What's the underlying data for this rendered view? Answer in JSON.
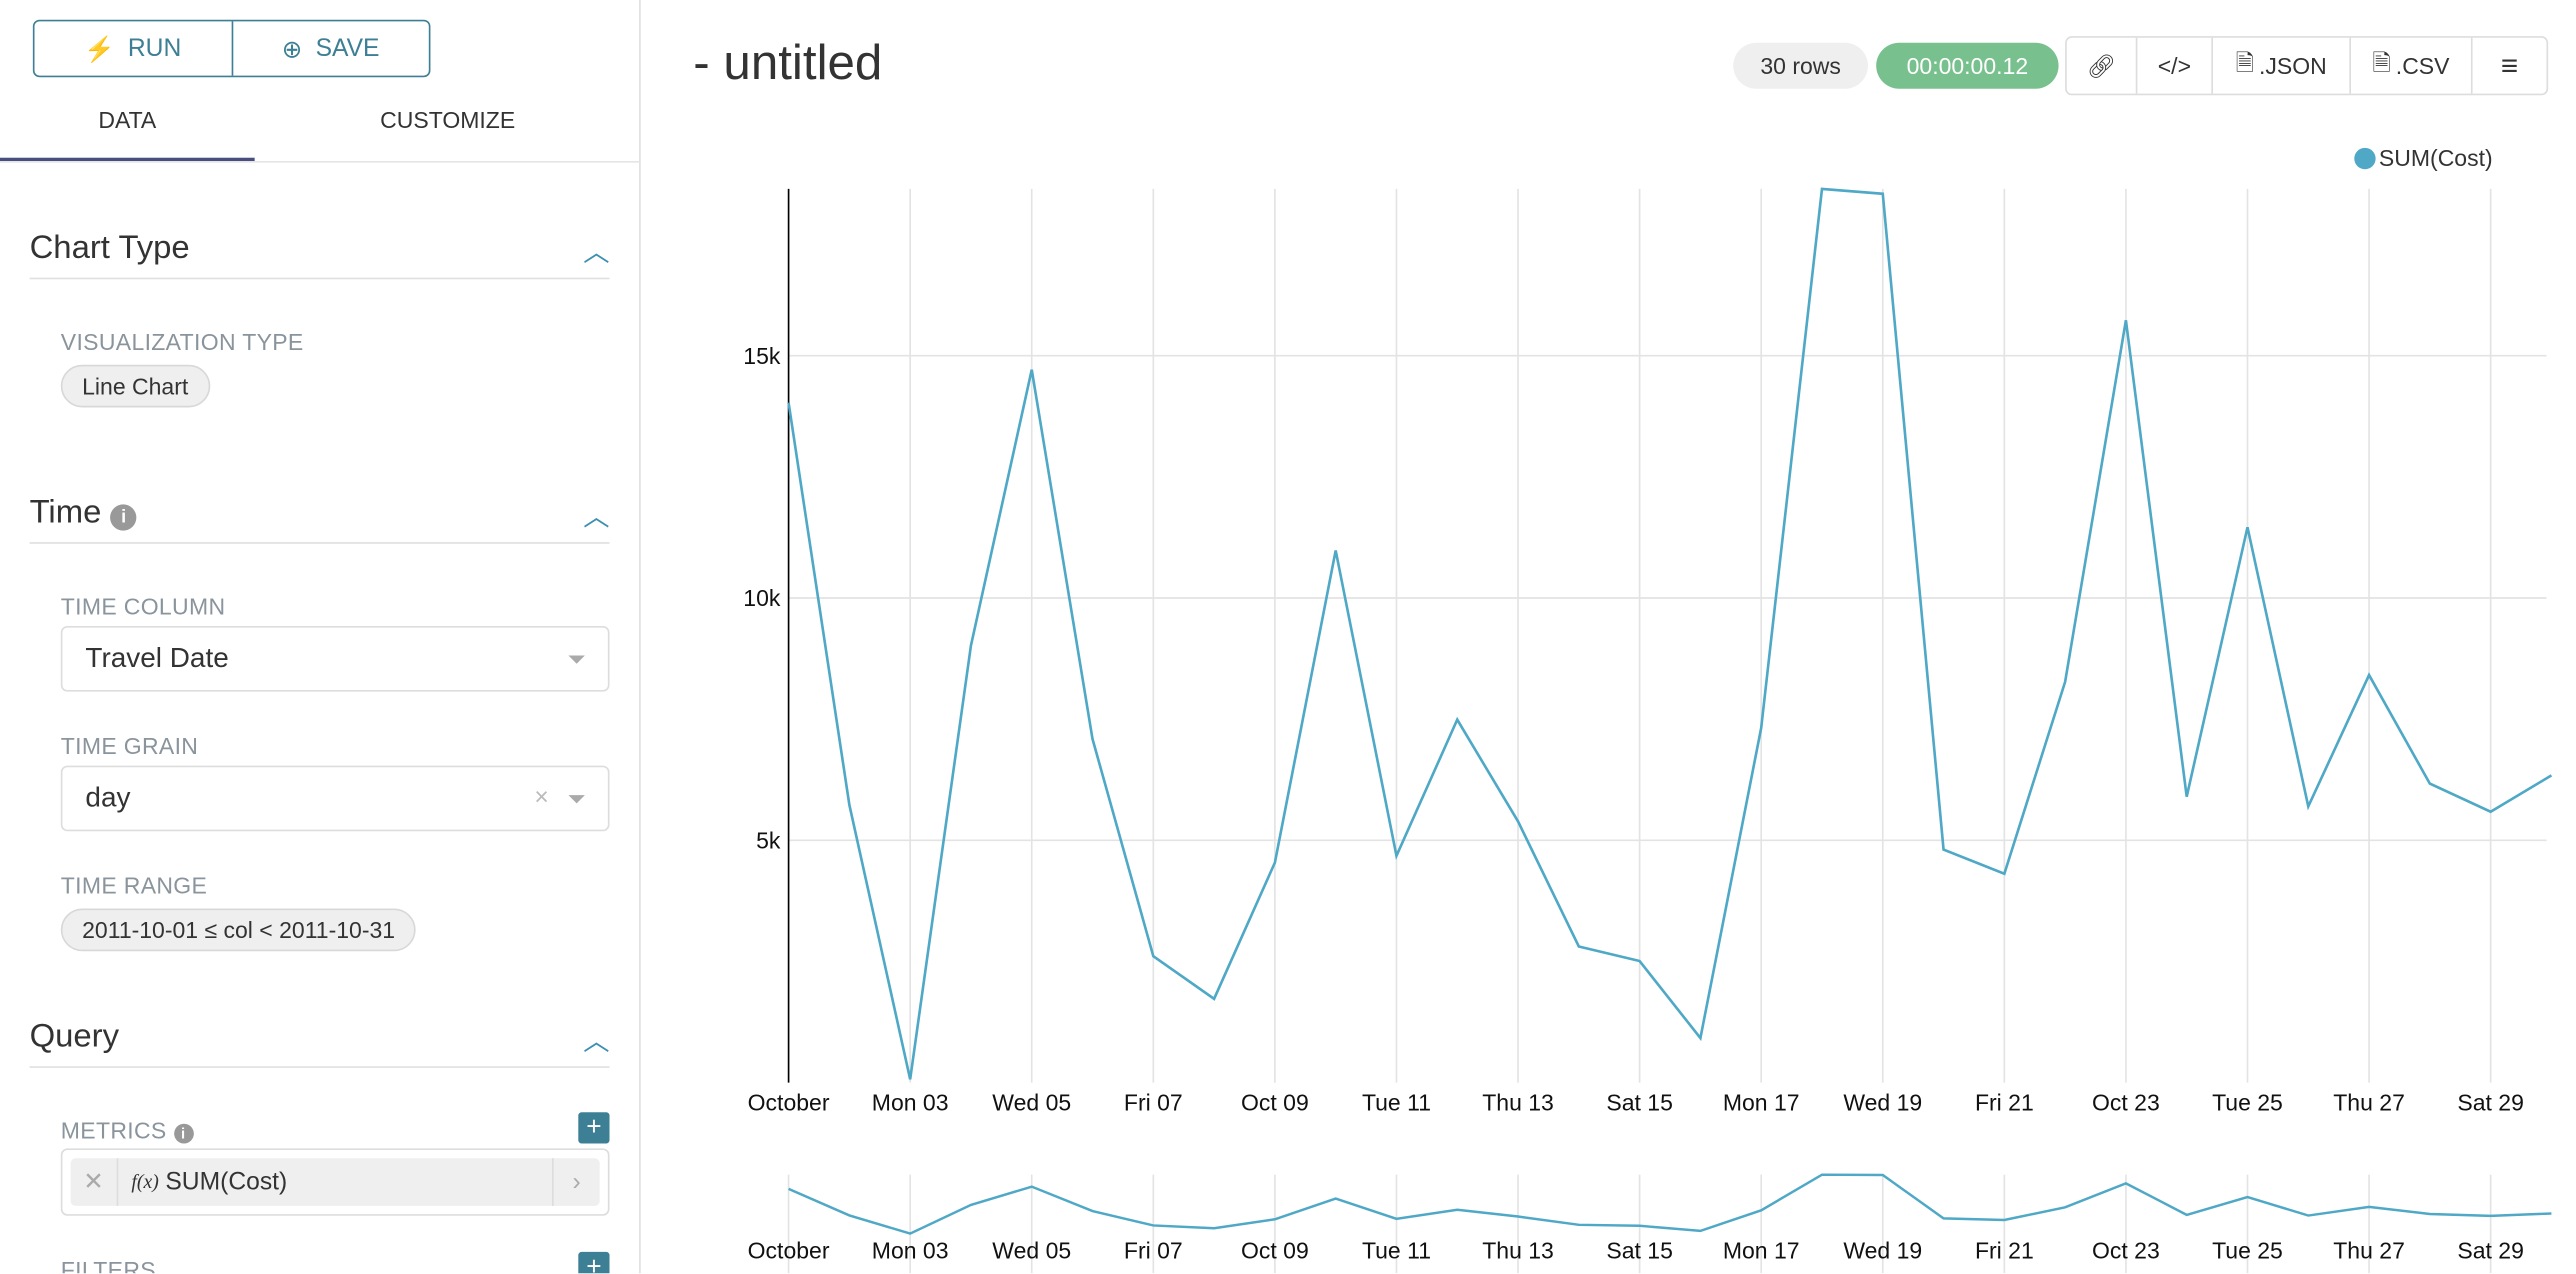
{
  "toolbar": {
    "run_label": "RUN",
    "save_label": "SAVE"
  },
  "tabs": [
    {
      "label": "DATA",
      "active": true
    },
    {
      "label": "CUSTOMIZE",
      "active": false
    }
  ],
  "sections": {
    "chart_type": {
      "title": "Chart Type",
      "viz_label": "VISUALIZATION TYPE",
      "viz_value": "Line Chart"
    },
    "time": {
      "title": "Time",
      "column_label": "TIME COLUMN",
      "column_value": "Travel Date",
      "grain_label": "TIME GRAIN",
      "grain_value": "day",
      "range_label": "TIME RANGE",
      "range_value": "2011-10-01 ≤ col < 2011-10-31"
    },
    "query": {
      "title": "Query",
      "metrics_label": "METRICS",
      "metric_value": "SUM(Cost)",
      "metric_fx": "f(x)",
      "filters_label": "FILTERS"
    }
  },
  "header": {
    "title": "- untitled",
    "rows_badge": "30 rows",
    "timer_badge": "00:00:00.12",
    "json_label": ".JSON",
    "csv_label": ".CSV"
  },
  "colors": {
    "accent": "#3d8096",
    "line": "#4ea8c6",
    "success": "#78c08e"
  },
  "chart_data": {
    "type": "line",
    "x": [
      "2011-10-01",
      "2011-10-02",
      "2011-10-03",
      "2011-10-04",
      "2011-10-05",
      "2011-10-06",
      "2011-10-07",
      "2011-10-08",
      "2011-10-09",
      "2011-10-10",
      "2011-10-11",
      "2011-10-12",
      "2011-10-13",
      "2011-10-14",
      "2011-10-15",
      "2011-10-16",
      "2011-10-17",
      "2011-10-18",
      "2011-10-19",
      "2011-10-20",
      "2011-10-21",
      "2011-10-22",
      "2011-10-23",
      "2011-10-24",
      "2011-10-25",
      "2011-10-26",
      "2011-10-27",
      "2011-10-28",
      "2011-10-29",
      "2011-10-30"
    ],
    "series": [
      {
        "name": "SUM(Cost)",
        "values": [
          14030,
          5730,
          70,
          9020,
          14710,
          7090,
          2610,
          1730,
          4540,
          10980,
          4680,
          7490,
          5390,
          2810,
          2510,
          920,
          7320,
          18440,
          18340,
          4810,
          4310,
          8270,
          15730,
          5900,
          11460,
          5700,
          8410,
          6170,
          5590,
          6340
        ]
      }
    ],
    "xtick_labels": [
      "October",
      "Mon 03",
      "Wed 05",
      "Fri 07",
      "Oct 09",
      "Tue 11",
      "Thu 13",
      "Sat 15",
      "Mon 17",
      "Wed 19",
      "Fri 21",
      "Oct 23",
      "Tue 25",
      "Thu 27",
      "Sat 29"
    ],
    "yticks": [
      5000,
      10000,
      15000
    ],
    "ytick_labels": [
      "5k",
      "10k",
      "15k"
    ],
    "ylim": [
      0,
      18440
    ],
    "grid": true,
    "legend": "top-right",
    "brush": true
  }
}
